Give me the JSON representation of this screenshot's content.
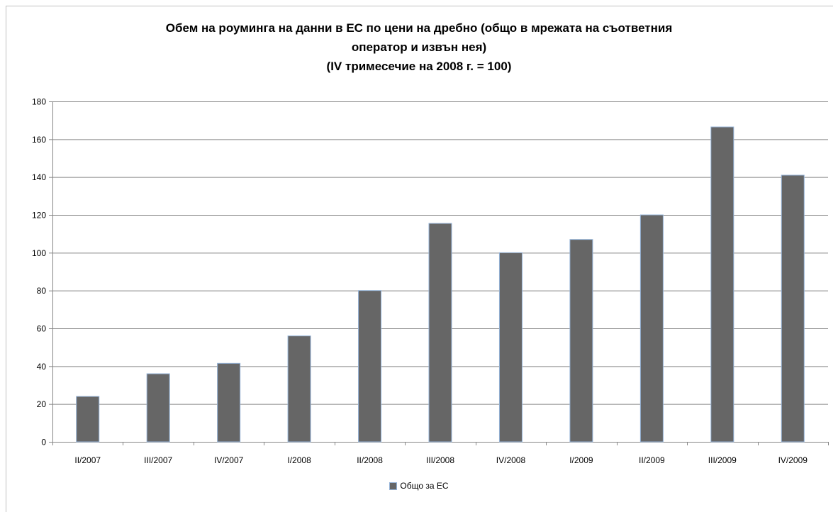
{
  "chart_data": {
    "type": "bar",
    "title_lines": [
      "Обем на роуминга на данни в ЕС по цени на дребно (общо в мрежата на съответния",
      "оператор и извън нея)",
      "(IV тримесечие на 2008 г. = 100)"
    ],
    "categories": [
      "II/2007",
      "III/2007",
      "IV/2007",
      "I/2008",
      "II/2008",
      "III/2008",
      "IV/2008",
      "I/2009",
      "II/2009",
      "III/2009",
      "IV/2009"
    ],
    "series": [
      {
        "name": "Общо за ЕС",
        "values": [
          24,
          36,
          41.5,
          56,
          80,
          115.5,
          100,
          107,
          120,
          166.5,
          141
        ]
      }
    ],
    "ylim": [
      0,
      180
    ],
    "yticks": [
      0,
      20,
      40,
      60,
      80,
      100,
      120,
      140,
      160,
      180
    ],
    "grid": true,
    "legend_position": "bottom",
    "colors": {
      "bar_fill": "#666666",
      "bar_border": "#95b3d7",
      "gridline": "#868686",
      "axis": "#868686"
    }
  }
}
